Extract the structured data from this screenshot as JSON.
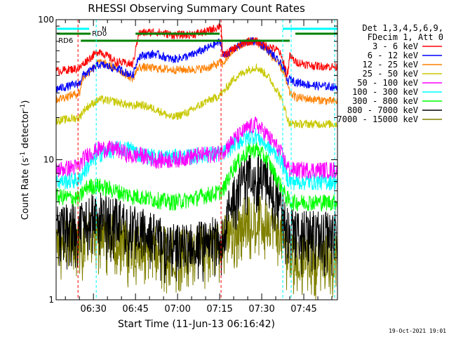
{
  "chart_data": {
    "type": "line",
    "title": "RHESSI Observing Summary Count Rates",
    "xlabel": "Start Time (11-Jun-13 06:16:42)",
    "ylabel": "Count Rate (s",
    "ylabel_sup": "-1",
    "ylabel_tail": " detector",
    "ylabel_end": ")",
    "yscale": "log",
    "ylim": [
      1,
      100
    ],
    "y_ticks": [
      {
        "value": 1,
        "label": "1"
      },
      {
        "value": 10,
        "label": "10"
      },
      {
        "value": 100,
        "label": "100"
      }
    ],
    "x_ticks": [
      "06:30",
      "06:45",
      "07:00",
      "07:15",
      "07:30",
      "07:45"
    ],
    "x_tick_minutes": [
      30,
      45,
      60,
      75,
      90,
      105
    ],
    "x_range_minutes": [
      16.7,
      117
    ],
    "legend_header": [
      "Det 1,3,4,5,6,9,",
      "FDecim 1, Att 0"
    ],
    "timestamp": "19-Oct-2021 19:01",
    "annotations": {
      "rd0": "RD0",
      "rd6": "RD6",
      "n": "N"
    },
    "time_points_min": [
      16.7,
      25,
      26,
      28,
      32,
      38,
      44,
      46,
      52,
      58,
      64,
      70,
      74,
      75.5,
      76,
      80,
      85,
      88,
      92,
      96,
      98,
      99,
      100,
      102,
      108,
      117
    ],
    "series": [
      {
        "name": "3 - 6 keV",
        "color": "#ff0000",
        "values": [
          43,
          45,
          48,
          52,
          60,
          50,
          48,
          80,
          82,
          78,
          78,
          82,
          88,
          92,
          55,
          62,
          70,
          70,
          65,
          60,
          48,
          40,
          55,
          50,
          47,
          46
        ]
      },
      {
        "name": "6 - 12 keV",
        "color": "#0000ff",
        "values": [
          32,
          35,
          40,
          42,
          48,
          45,
          40,
          55,
          57,
          52,
          55,
          62,
          68,
          70,
          55,
          62,
          70,
          70,
          62,
          50,
          45,
          36,
          38,
          36,
          34,
          33
        ]
      },
      {
        "name": "12 - 25 keV",
        "color": "#ff8000",
        "values": [
          27,
          30,
          38,
          42,
          50,
          45,
          38,
          46,
          45,
          44,
          44,
          45,
          48,
          50,
          48,
          62,
          70,
          70,
          60,
          48,
          42,
          34,
          30,
          28,
          27,
          26
        ]
      },
      {
        "name": "25 - 50 keV",
        "color": "#c8c800",
        "values": [
          19,
          20,
          22,
          24,
          27,
          26,
          24,
          25,
          23,
          20,
          22,
          26,
          28,
          30,
          30,
          38,
          44,
          46,
          40,
          30,
          24,
          20,
          18,
          18,
          18,
          18
        ]
      },
      {
        "name": "50 - 100 keV",
        "color": "#ff00ff",
        "values": [
          8.5,
          9,
          10,
          11,
          12,
          12,
          10.5,
          11,
          10,
          10,
          10.5,
          11,
          11,
          11.5,
          11.5,
          14,
          17,
          18,
          15,
          12,
          10,
          9,
          8.5,
          8.5,
          8.5,
          8.5
        ]
      },
      {
        "name": "100 - 300 keV",
        "color": "#00ffff",
        "values": [
          7,
          7.2,
          8,
          9,
          11,
          12,
          12,
          11,
          10.5,
          10.5,
          10.5,
          11,
          11,
          11,
          11,
          13,
          14.5,
          15,
          12.5,
          10.5,
          9,
          7.5,
          7,
          7,
          7,
          7
        ]
      },
      {
        "name": "300 - 800 keV",
        "color": "#00ff00",
        "values": [
          5.5,
          5.3,
          5.8,
          6.5,
          6.5,
          6,
          5.5,
          5.5,
          5.2,
          5,
          5.2,
          5.6,
          5.8,
          6,
          6,
          9,
          11.5,
          12,
          10,
          7,
          5.8,
          5.3,
          5,
          5,
          5,
          5
        ]
      },
      {
        "name": "800 - 7000 keV",
        "color": "#000000",
        "values": [
          3.6,
          3.6,
          4,
          4.3,
          4.5,
          4,
          3.5,
          3.5,
          3,
          2.6,
          2.6,
          2.8,
          3,
          3.2,
          3.3,
          6,
          8.5,
          9.2,
          7.5,
          5.5,
          4,
          3.6,
          3.4,
          3.3,
          3.2,
          3.2
        ]
      },
      {
        "name": "7000 - 15000 keV",
        "color": "#808000",
        "values": [
          2.8,
          2.8,
          2.8,
          3.2,
          3.2,
          3,
          2.6,
          2.6,
          2.6,
          2.4,
          2.5,
          2.6,
          2.7,
          2.8,
          2.9,
          3.5,
          4.2,
          4.3,
          3.8,
          3.2,
          2.8,
          2.5,
          2.2,
          2.2,
          2.2,
          2.2
        ]
      }
    ]
  }
}
